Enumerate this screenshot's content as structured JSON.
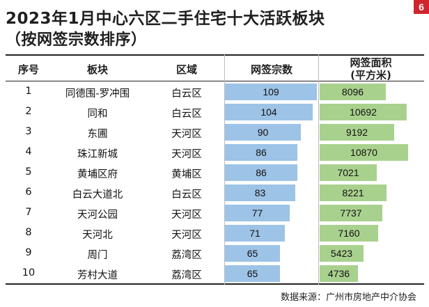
{
  "title_line1": "2023年1月中心六区二手住宅十大活跃板块",
  "title_line2": "（按网签宗数排序）",
  "page_badge": "6",
  "chart_data": {
    "type": "table",
    "title": "2023年1月中心六区二手住宅十大活跃板块（按网签宗数排序）",
    "headers": {
      "rank": "序号",
      "block": "板块",
      "district": "区域",
      "count": "网签宗数",
      "area_line1": "网签面积",
      "area_line2": "(平方米)"
    },
    "count_max": 109,
    "area_max": 10870,
    "rows": [
      {
        "rank": "1",
        "block": "同德围-罗冲围",
        "district": "白云区",
        "count": 109,
        "area": 8096
      },
      {
        "rank": "2",
        "block": "同和",
        "district": "白云区",
        "count": 104,
        "area": 10692
      },
      {
        "rank": "3",
        "block": "东圃",
        "district": "天河区",
        "count": 90,
        "area": 9192
      },
      {
        "rank": "4",
        "block": "珠江新城",
        "district": "天河区",
        "count": 86,
        "area": 10870
      },
      {
        "rank": "5",
        "block": "黄埔区府",
        "district": "黄埔区",
        "count": 86,
        "area": 7021
      },
      {
        "rank": "6",
        "block": "白云大道北",
        "district": "白云区",
        "count": 83,
        "area": 8221
      },
      {
        "rank": "7",
        "block": "天河公园",
        "district": "天河区",
        "count": 77,
        "area": 7737
      },
      {
        "rank": "8",
        "block": "天河北",
        "district": "天河区",
        "count": 71,
        "area": 7160
      },
      {
        "rank": "9",
        "block": "周门",
        "district": "荔湾区",
        "count": 65,
        "area": 5423
      },
      {
        "rank": "10",
        "block": "芳村大道",
        "district": "荔湾区",
        "count": 65,
        "area": 4736
      }
    ],
    "colors": {
      "count_bar": "#9dc3e6",
      "area_bar": "#a9d18e"
    }
  },
  "source": "数据来源：广州市房地产中介协会"
}
